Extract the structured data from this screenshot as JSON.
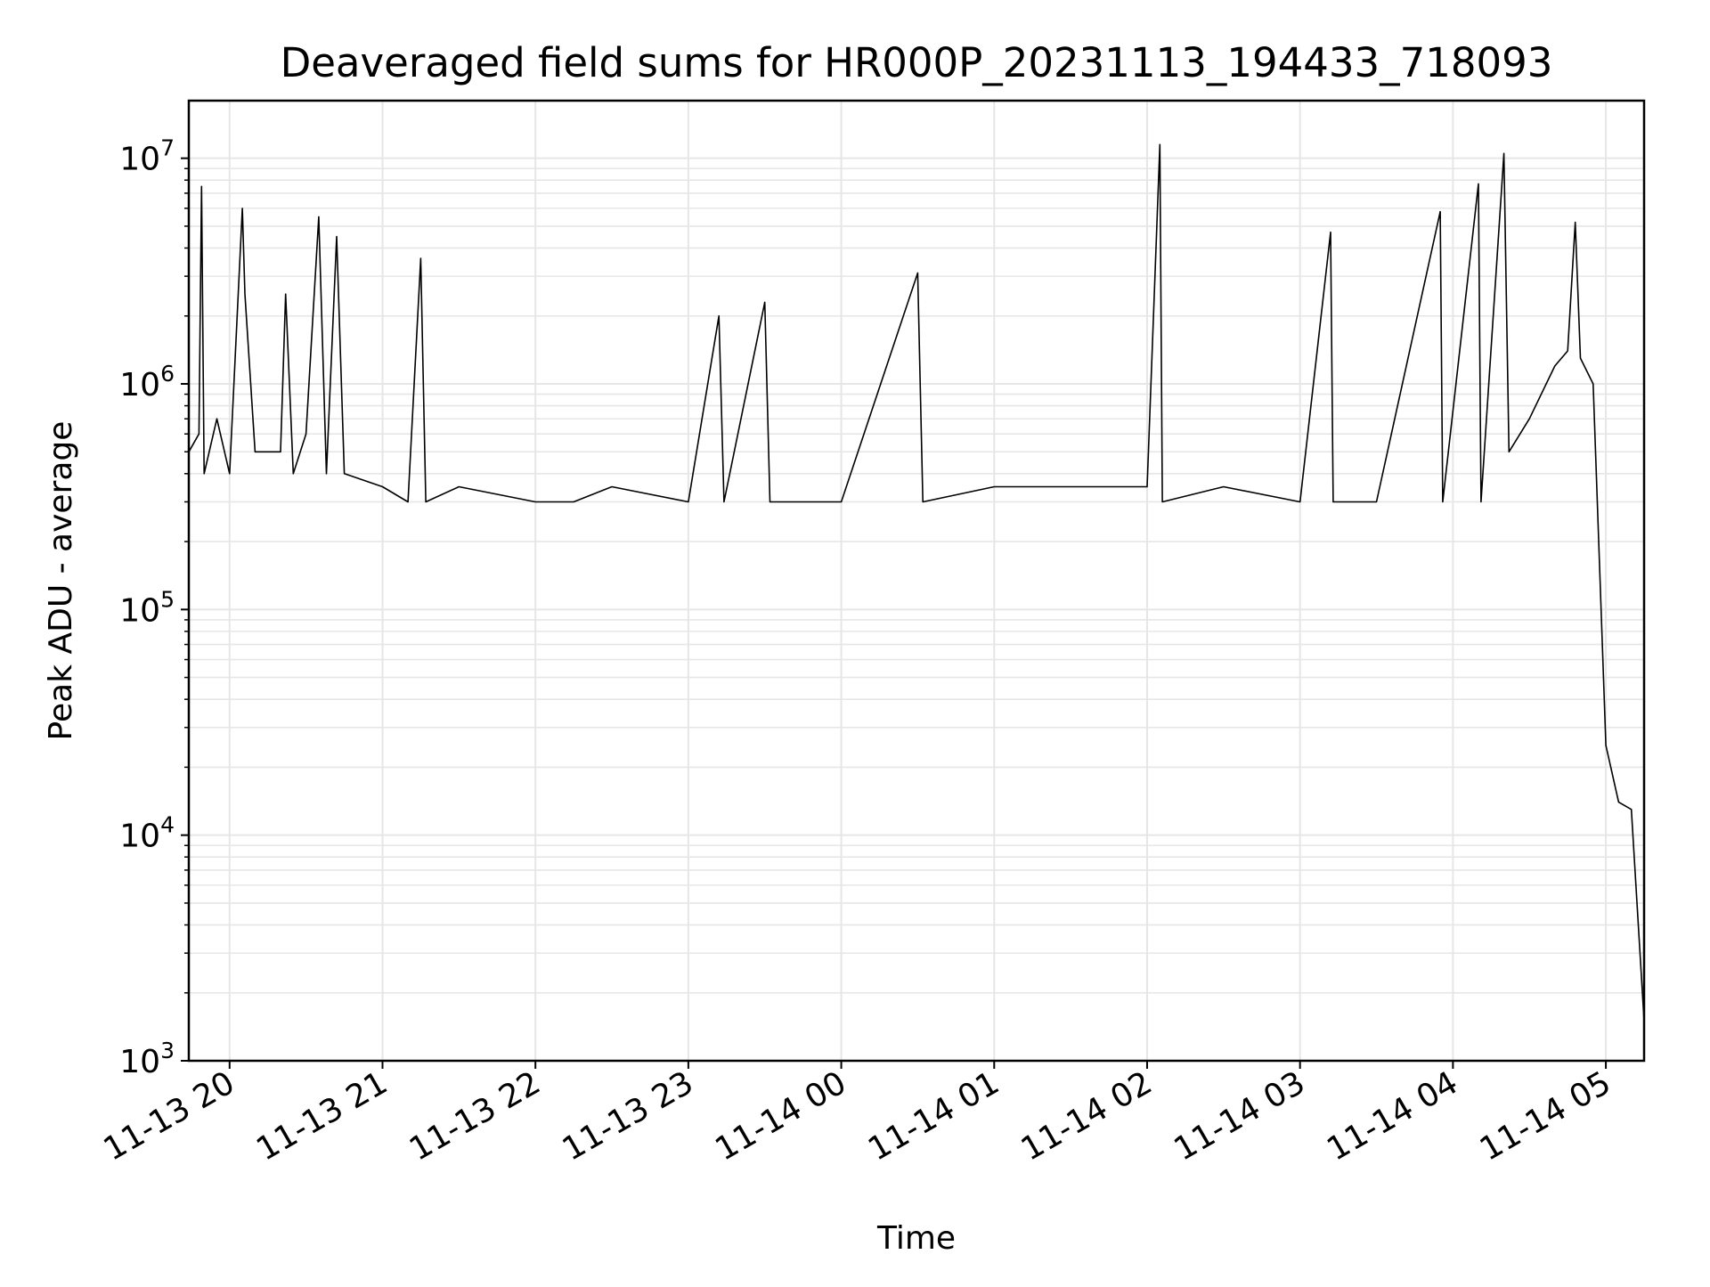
{
  "chart_data": {
    "type": "line",
    "title": "Deaveraged field sums for HR000P_20231113_194433_718093",
    "xlabel": "Time",
    "ylabel": "Peak ADU - average",
    "yscale": "log",
    "grid": true,
    "line_color": "#000000",
    "grid_color": "#e6e6e6",
    "xlim": [
      "2023-11-13 19:44",
      "2023-11-14 05:15"
    ],
    "ylim": [
      1000,
      18000000
    ],
    "x_ticks": [
      {
        "value": "2023-11-13 20:00",
        "label": "11-13 20"
      },
      {
        "value": "2023-11-13 21:00",
        "label": "11-13 21"
      },
      {
        "value": "2023-11-13 22:00",
        "label": "11-13 22"
      },
      {
        "value": "2023-11-13 23:00",
        "label": "11-13 23"
      },
      {
        "value": "2023-11-14 00:00",
        "label": "11-14 00"
      },
      {
        "value": "2023-11-14 01:00",
        "label": "11-14 01"
      },
      {
        "value": "2023-11-14 02:00",
        "label": "11-14 02"
      },
      {
        "value": "2023-11-14 03:00",
        "label": "11-14 03"
      },
      {
        "value": "2023-11-14 04:00",
        "label": "11-14 04"
      },
      {
        "value": "2023-11-14 05:00",
        "label": "11-14 05"
      }
    ],
    "y_ticks": [
      {
        "value": 1000,
        "base": "10",
        "exp": "3"
      },
      {
        "value": 10000,
        "base": "10",
        "exp": "4"
      },
      {
        "value": 100000,
        "base": "10",
        "exp": "5"
      },
      {
        "value": 1000000,
        "base": "10",
        "exp": "6"
      },
      {
        "value": 10000000,
        "base": "10",
        "exp": "7"
      }
    ],
    "series": [
      {
        "points": [
          [
            "2023-11-13 19:44",
            500000
          ],
          [
            "2023-11-13 19:48",
            600000
          ],
          [
            "2023-11-13 19:49",
            7500000
          ],
          [
            "2023-11-13 19:50",
            400000
          ],
          [
            "2023-11-13 19:55",
            700000
          ],
          [
            "2023-11-13 20:00",
            400000
          ],
          [
            "2023-11-13 20:05",
            6000000
          ],
          [
            "2023-11-13 20:06",
            2500000
          ],
          [
            "2023-11-13 20:10",
            500000
          ],
          [
            "2023-11-13 20:20",
            500000
          ],
          [
            "2023-11-13 20:22",
            2500000
          ],
          [
            "2023-11-13 20:25",
            400000
          ],
          [
            "2023-11-13 20:30",
            600000
          ],
          [
            "2023-11-13 20:35",
            5500000
          ],
          [
            "2023-11-13 20:38",
            400000
          ],
          [
            "2023-11-13 20:42",
            4500000
          ],
          [
            "2023-11-13 20:45",
            400000
          ],
          [
            "2023-11-13 21:00",
            350000
          ],
          [
            "2023-11-13 21:10",
            300000
          ],
          [
            "2023-11-13 21:15",
            3600000
          ],
          [
            "2023-11-13 21:17",
            300000
          ],
          [
            "2023-11-13 21:30",
            350000
          ],
          [
            "2023-11-13 22:00",
            300000
          ],
          [
            "2023-11-13 22:15",
            300000
          ],
          [
            "2023-11-13 22:30",
            350000
          ],
          [
            "2023-11-13 23:00",
            300000
          ],
          [
            "2023-11-13 23:12",
            2000000
          ],
          [
            "2023-11-13 23:14",
            300000
          ],
          [
            "2023-11-13 23:30",
            2300000
          ],
          [
            "2023-11-13 23:32",
            300000
          ],
          [
            "2023-11-14 00:00",
            300000
          ],
          [
            "2023-11-14 00:30",
            3100000
          ],
          [
            "2023-11-14 00:32",
            300000
          ],
          [
            "2023-11-14 01:00",
            350000
          ],
          [
            "2023-11-14 01:30",
            350000
          ],
          [
            "2023-11-14 02:00",
            350000
          ],
          [
            "2023-11-14 02:05",
            11500000
          ],
          [
            "2023-11-14 02:06",
            300000
          ],
          [
            "2023-11-14 02:30",
            350000
          ],
          [
            "2023-11-14 03:00",
            300000
          ],
          [
            "2023-11-14 03:12",
            4700000
          ],
          [
            "2023-11-14 03:13",
            300000
          ],
          [
            "2023-11-14 03:30",
            300000
          ],
          [
            "2023-11-14 03:55",
            5800000
          ],
          [
            "2023-11-14 03:56",
            300000
          ],
          [
            "2023-11-14 04:10",
            7700000
          ],
          [
            "2023-11-14 04:11",
            300000
          ],
          [
            "2023-11-14 04:20",
            10500000
          ],
          [
            "2023-11-14 04:22",
            500000
          ],
          [
            "2023-11-14 04:30",
            700000
          ],
          [
            "2023-11-14 04:40",
            1200000
          ],
          [
            "2023-11-14 04:45",
            1400000
          ],
          [
            "2023-11-14 04:48",
            5200000
          ],
          [
            "2023-11-14 04:50",
            1300000
          ],
          [
            "2023-11-14 04:55",
            1000000
          ],
          [
            "2023-11-14 05:00",
            25000
          ],
          [
            "2023-11-14 05:05",
            14000
          ],
          [
            "2023-11-14 05:10",
            13000
          ],
          [
            "2023-11-14 05:15",
            1500
          ]
        ]
      }
    ]
  }
}
